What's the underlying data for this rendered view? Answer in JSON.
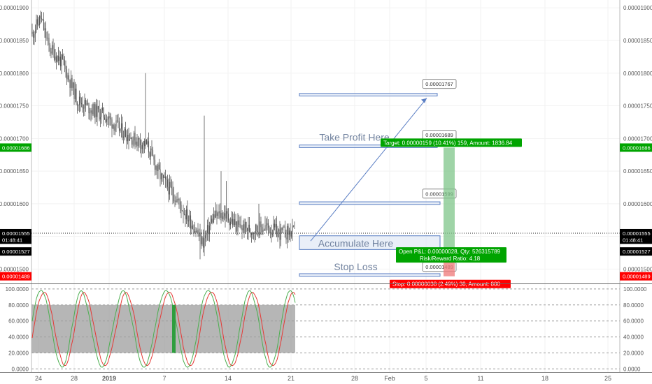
{
  "chart_data": [
    {
      "type": "candlestick",
      "pane": "price",
      "y_ticks": [
        "0.00001500",
        "0.00001550",
        "0.00001600",
        "0.00001650",
        "0.00001700",
        "0.00001750",
        "0.00001800",
        "0.00001850",
        "0.00001900"
      ],
      "y_tick_values": [
        1.5e-05,
        1.55e-05,
        1.6e-05,
        1.65e-05,
        1.7e-05,
        1.75e-05,
        1.8e-05,
        1.85e-05,
        1.9e-05
      ],
      "ylim": [
        1.478e-05,
        1.912e-05
      ],
      "price_badges": [
        {
          "name": "target-price",
          "label": "0.00001686",
          "value": 1.686e-05,
          "color": "#00a400"
        },
        {
          "name": "current-price",
          "label": "0.00001555",
          "value": 1.555e-05,
          "color": "#000000"
        },
        {
          "name": "countdown",
          "label": "01:48:41",
          "value": 1.545e-05,
          "color": "#000000"
        },
        {
          "name": "entry-price",
          "label": "0.00001527",
          "value": 1.527e-05,
          "color": "#000000"
        },
        {
          "name": "stop-price",
          "label": "0.00001489",
          "value": 1.489e-05,
          "color": "#ff0000"
        }
      ],
      "zones": [
        {
          "name": "target-1767-box",
          "top": 1.769e-05,
          "bottom": 1.765e-05,
          "start": 415,
          "end": 612
        },
        {
          "name": "take-profit-box",
          "label": "Take Profit Here",
          "top": 1.69e-05,
          "bottom": 1.686e-05,
          "start": 415,
          "end": 612
        },
        {
          "name": "target-1599-box",
          "label": "",
          "top": 1.603e-05,
          "bottom": 1.599e-05,
          "start": 415,
          "end": 616
        },
        {
          "name": "accumulate-box",
          "label": "Accumulate Here",
          "top": 1.551e-05,
          "bottom": 1.53e-05,
          "start": 415,
          "end": 616
        },
        {
          "name": "stop-loss-box",
          "label": "Stop Loss",
          "top": 1.493e-05,
          "bottom": 1.489e-05,
          "start": 415,
          "end": 616
        }
      ],
      "callouts": [
        {
          "name": "callout-1767",
          "label": "0.00001767"
        },
        {
          "name": "callout-1689",
          "label": "0.00001689"
        },
        {
          "name": "callout-1599",
          "label": "0.00001599"
        },
        {
          "name": "callout-1489",
          "label": "0.00001489"
        }
      ],
      "arrow": {
        "from_value": 1.543e-05,
        "to_value": 1.767e-05
      },
      "position": {
        "entry": 1.527e-05,
        "target": 1.686e-05,
        "stop": 1.489e-05,
        "target_label": "Target: 0.00000159 (10.41%) 159, Amount: 1836.84",
        "pnl_label": "Open P&L: 0.00000028, Qty: 526315789",
        "ratio_label": "Risk/Reward Ratio: 4.18",
        "stop_label": "Stop: 0.00000038 (2.49%) 38, Amount: 800"
      },
      "x_ticks": [
        "24",
        "28",
        "2019",
        "7",
        "14",
        "21",
        "28",
        "Feb",
        "5",
        "11",
        "18",
        "25"
      ],
      "colors": {
        "up": "#53b987",
        "down": "#eb4d5c",
        "candle": "#555555",
        "target": "#00a400",
        "stop": "#ff0000",
        "zone": "#5b7fc4"
      }
    },
    {
      "type": "line",
      "pane": "stochastic",
      "y_ticks": [
        "0.0000",
        "20.0000",
        "40.0000",
        "60.0000",
        "80.0000",
        "100.0000"
      ],
      "y_tick_values": [
        0,
        20,
        40,
        60,
        80,
        100
      ],
      "ylim": [
        -4,
        106
      ],
      "band": [
        20,
        80
      ],
      "series_colors": {
        "k": "#4caf50",
        "d": "#e53935"
      }
    }
  ]
}
